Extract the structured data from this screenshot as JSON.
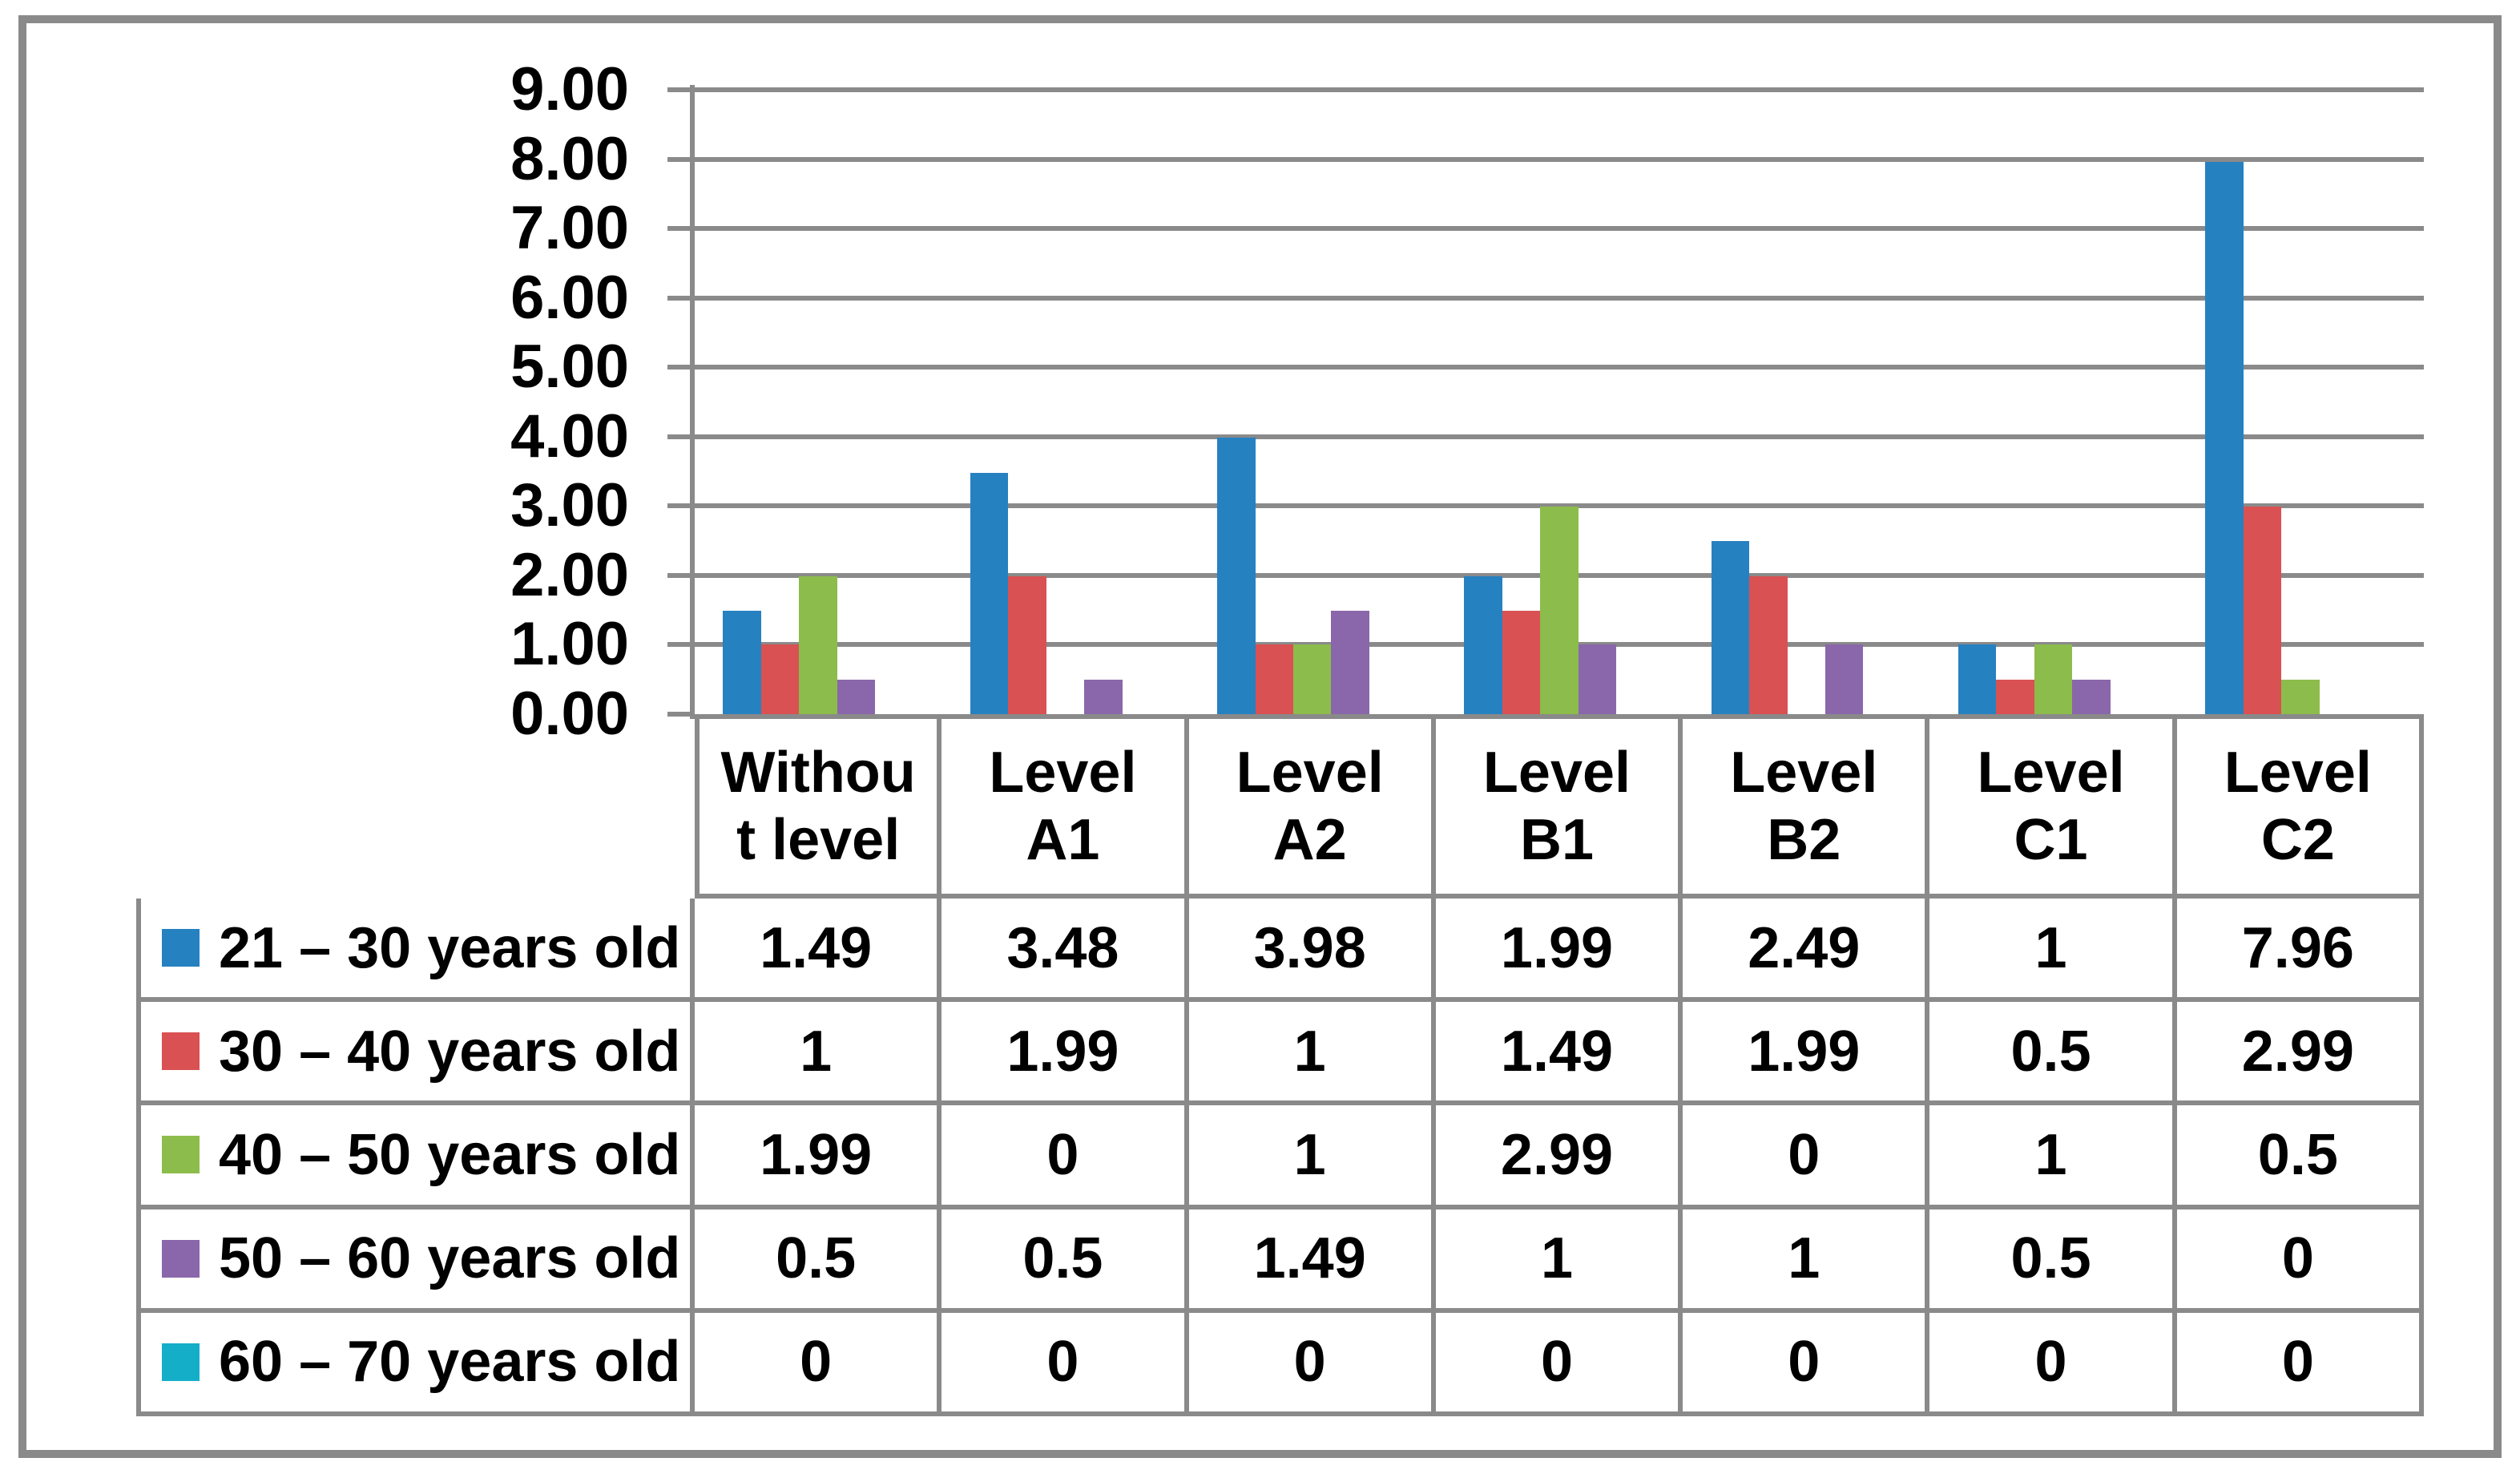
{
  "chart_data": {
    "type": "bar",
    "title": "",
    "xlabel": "",
    "ylabel": "",
    "categories": [
      "Without level",
      "Level A1",
      "Level A2",
      "Level B1",
      "Level B2",
      "Level C1",
      "Level C2"
    ],
    "category_header_lines": [
      [
        "Withou",
        "t level"
      ],
      [
        "Level",
        "A1"
      ],
      [
        "Level",
        "A2"
      ],
      [
        "Level",
        "B1"
      ],
      [
        "Level",
        "B2"
      ],
      [
        "Level",
        "C1"
      ],
      [
        "Level",
        "C2"
      ]
    ],
    "series": [
      {
        "name": "21 – 30 years old",
        "color": "#2681C1",
        "values": [
          1.49,
          3.48,
          3.98,
          1.99,
          2.49,
          1,
          7.96
        ]
      },
      {
        "name": "30 – 40 years old",
        "color": "#D95152",
        "values": [
          1,
          1.99,
          1,
          1.49,
          1.99,
          0.5,
          2.99
        ]
      },
      {
        "name": "40 – 50 years old",
        "color": "#8CBC4B",
        "values": [
          1.99,
          0,
          1,
          2.99,
          0,
          1,
          0.5
        ]
      },
      {
        "name": "50 – 60 years old",
        "color": "#8A67AB",
        "values": [
          0.5,
          0.5,
          1.49,
          1,
          1,
          0.5,
          0
        ]
      },
      {
        "name": "60 – 70 years old",
        "color": "#14AEC9",
        "values": [
          0,
          0,
          0,
          0,
          0,
          0,
          0
        ]
      }
    ],
    "ylim": [
      0,
      9
    ],
    "y_ticks": [
      "9.00",
      "8.00",
      "7.00",
      "6.00",
      "5.00",
      "4.00",
      "3.00",
      "2.00",
      "1.00",
      "0.00"
    ],
    "grid": true,
    "legend_position": "table-rows-left",
    "colors": {
      "gridline": "#8A8A8A",
      "frame": "#8A8A8A",
      "text": "#000000",
      "background": "#FFFFFF"
    }
  }
}
